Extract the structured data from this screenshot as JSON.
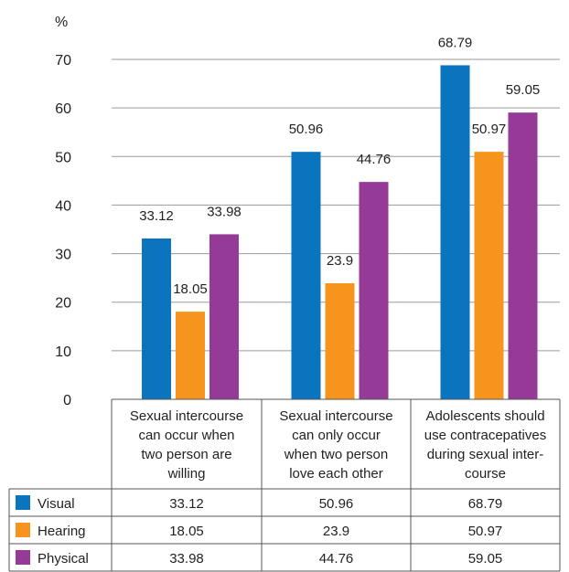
{
  "chart_data": {
    "type": "bar",
    "ylabel": "%",
    "ylim": [
      0,
      70
    ],
    "yticks": [
      "0",
      "10",
      "20",
      "30",
      "40",
      "50",
      "60",
      "70"
    ],
    "grid": true,
    "categories": [
      [
        "Sexual intercourse",
        "can occur when",
        "two person are",
        "willing"
      ],
      [
        "Sexual intercourse",
        "can only occur",
        "when two person",
        "love each other"
      ],
      [
        "Adolescents should",
        "use contracepatives",
        "during sexual inter-",
        "course"
      ]
    ],
    "series": [
      {
        "name": "Visual",
        "values": [
          33.12,
          50.96,
          68.79
        ],
        "labels": [
          "33.12",
          "50.96",
          "68.79"
        ],
        "color": "#0a74bf"
      },
      {
        "name": "Hearing",
        "values": [
          18.05,
          23.9,
          50.97
        ],
        "labels": [
          "18.05",
          "23.9",
          "50.97"
        ],
        "color": "#f7941d"
      },
      {
        "name": "Physical",
        "values": [
          33.98,
          44.76,
          59.05
        ],
        "labels": [
          "33.98",
          "44.76",
          "59.05"
        ],
        "color": "#953a97"
      }
    ]
  }
}
